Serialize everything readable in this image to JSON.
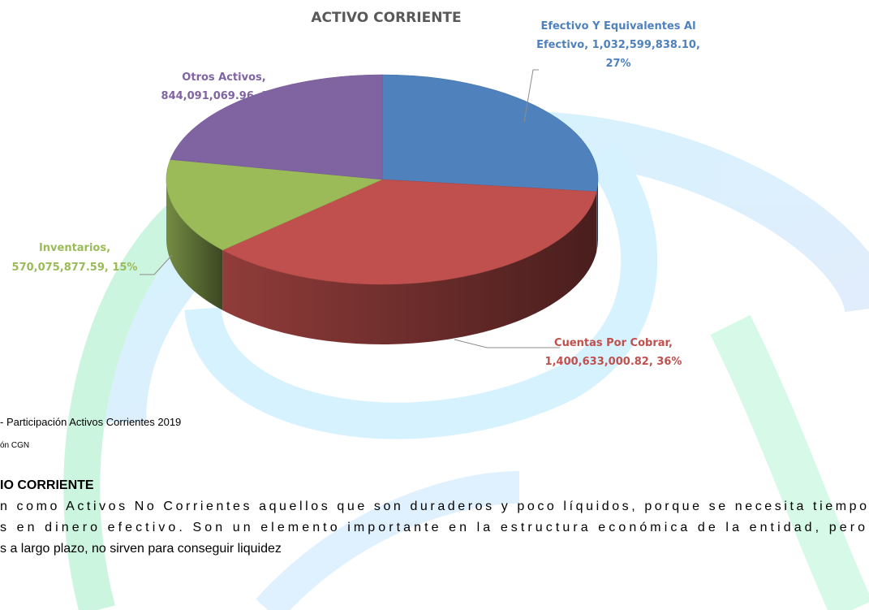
{
  "chart_data": {
    "type": "pie3d",
    "title": "ACTIVO CORRIENTE",
    "values": [
      1032599838.1,
      1400633000.82,
      570075877.59,
      844091069.96
    ],
    "value_labels": [
      [
        "Efectivo Y Equivalentes Al",
        "Efectivo, 1,032,599,838.10,",
        "27%"
      ],
      [
        "Cuentas Por Cobrar,",
        "1,400,633,000.82, 36%"
      ],
      [
        "Inventarios,",
        "570,075,877.59, 15%"
      ],
      [
        "Otros Activos,",
        "844,091,069.96, 22%"
      ]
    ],
    "colors": [
      "#4f81bd",
      "#c0504d",
      "#9bbb59",
      "#8064a2"
    ],
    "start_angle": -90,
    "direction": "clockwise"
  },
  "document": {
    "caption": "- Participación Activos Corrientes 2019",
    "source": "ón  CGN",
    "heading": "IO CORRIENTE",
    "paragraph": [
      "n como Activos No Corrientes aquellos que son duraderos y poco líquidos, porque se necesita tiempo",
      "s en dinero efectivo. Son un elemento importante en la estructura económica de la entidad, pero",
      "s a largo plazo, no sirven para conseguir liquidez"
    ]
  }
}
